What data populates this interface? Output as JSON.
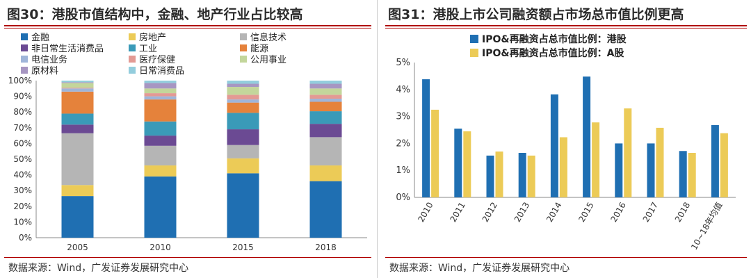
{
  "left": {
    "title": "图30：港股市值结构中，金融、地产行业占比较高",
    "source": "数据来源：Wind，广发证券发展研究中心"
  },
  "right": {
    "title": "图31：港股上市公司融资额占市场总市值比例更高",
    "source": "数据来源：Wind，广发证券发展研究中心"
  },
  "chart_data": [
    {
      "type": "bar",
      "stacked": true,
      "categories": [
        "2005",
        "2010",
        "2015",
        "2018"
      ],
      "ylim": [
        0,
        100
      ],
      "yticks": [
        "0%",
        "10%",
        "20%",
        "30%",
        "40%",
        "50%",
        "60%",
        "70%",
        "80%",
        "90%",
        "100%"
      ],
      "legend_placement": "top",
      "series": [
        {
          "name": "金融",
          "color": "#1f6fb2",
          "values": [
            26.5,
            39,
            41,
            36
          ]
        },
        {
          "name": "房地产",
          "color": "#eccb57",
          "values": [
            7,
            7,
            9.5,
            10
          ]
        },
        {
          "name": "信息技术",
          "color": "#b5b5b5",
          "values": [
            33,
            12.5,
            8.5,
            18
          ]
        },
        {
          "name": "非日常生活消费品",
          "color": "#6b4a93",
          "values": [
            5.5,
            6.5,
            10,
            8.5
          ]
        },
        {
          "name": "工业",
          "color": "#3a9ab8",
          "values": [
            7,
            9,
            10.5,
            8
          ]
        },
        {
          "name": "能源",
          "color": "#e5823b",
          "values": [
            14,
            14,
            6.5,
            6
          ]
        },
        {
          "name": "电信业务",
          "color": "#9fb5d9",
          "values": [
            2,
            2,
            2,
            2
          ]
        },
        {
          "name": "医疗保健",
          "color": "#e39a94",
          "values": [
            0.5,
            2,
            3,
            2.5
          ]
        },
        {
          "name": "公用事业",
          "color": "#c3d69b",
          "values": [
            3,
            3,
            5,
            4
          ]
        },
        {
          "name": "原材料",
          "color": "#a796c2",
          "values": [
            0.5,
            3.5,
            2,
            3
          ]
        },
        {
          "name": "日常消费品",
          "color": "#93cddd",
          "values": [
            1,
            1.5,
            2,
            2
          ]
        }
      ]
    },
    {
      "type": "bar",
      "categories": [
        "2010",
        "2011",
        "2012",
        "2013",
        "2014",
        "2015",
        "2016",
        "2017",
        "2018",
        "10~18年均值"
      ],
      "ylim": [
        0,
        5
      ],
      "yticks": [
        "0%",
        "1%",
        "2%",
        "3%",
        "4%",
        "5%"
      ],
      "legend_placement": "top-left",
      "series": [
        {
          "name": "IPO&再融资占总市值比例：港股",
          "color": "#1f6fb2",
          "values": [
            4.38,
            2.55,
            1.55,
            1.65,
            3.82,
            4.48,
            2.0,
            2.0,
            1.72,
            2.68
          ]
        },
        {
          "name": "IPO&再融资占总市值比例：A股",
          "color": "#eccb57",
          "values": [
            3.25,
            2.45,
            1.7,
            1.55,
            2.23,
            2.78,
            3.3,
            2.58,
            1.65,
            2.38
          ]
        }
      ]
    }
  ]
}
